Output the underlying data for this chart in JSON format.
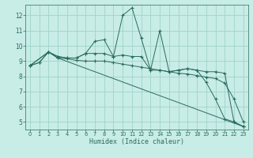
{
  "xlabel": "Humidex (Indice chaleur)",
  "bg_color": "#c8ece6",
  "line_color": "#2a6b5e",
  "grid_color": "#a0d4cc",
  "xlim": [
    -0.5,
    23.5
  ],
  "ylim": [
    4.5,
    12.7
  ],
  "xticks": [
    0,
    1,
    2,
    3,
    4,
    5,
    6,
    7,
    8,
    9,
    10,
    11,
    12,
    13,
    14,
    15,
    16,
    17,
    18,
    19,
    20,
    21,
    22,
    23
  ],
  "yticks": [
    5,
    6,
    7,
    8,
    9,
    10,
    11,
    12
  ],
  "lines": [
    {
      "x": [
        0,
        1,
        2,
        3,
        4,
        5,
        6,
        7,
        8,
        9,
        10,
        11,
        12,
        13,
        14,
        15,
        16,
        17,
        18,
        19,
        20,
        21,
        22,
        23
      ],
      "y": [
        8.7,
        8.9,
        9.6,
        9.3,
        9.2,
        9.2,
        9.5,
        10.3,
        10.4,
        9.3,
        12.0,
        12.5,
        10.5,
        8.4,
        11.0,
        8.3,
        8.4,
        8.5,
        8.4,
        7.6,
        6.5,
        5.2,
        5.0,
        4.7
      ]
    },
    {
      "x": [
        0,
        1,
        2,
        3,
        4,
        5,
        6,
        7,
        8,
        9,
        10,
        11,
        12,
        13,
        14,
        15,
        16,
        17,
        18,
        19,
        20,
        21,
        22,
        23
      ],
      "y": [
        8.7,
        8.9,
        9.6,
        9.3,
        9.2,
        9.2,
        9.5,
        9.5,
        9.5,
        9.3,
        9.4,
        9.3,
        9.3,
        8.4,
        8.4,
        8.3,
        8.4,
        8.5,
        8.4,
        8.3,
        8.3,
        8.2,
        5.0,
        4.7
      ]
    },
    {
      "x": [
        0,
        2,
        3,
        4,
        5,
        6,
        7,
        8,
        9,
        10,
        11,
        12,
        13,
        14,
        15,
        16,
        17,
        18,
        19,
        20,
        21,
        22,
        23
      ],
      "y": [
        8.7,
        9.6,
        9.2,
        9.15,
        9.05,
        9.0,
        9.0,
        9.0,
        8.9,
        8.8,
        8.7,
        8.6,
        8.5,
        8.4,
        8.3,
        8.2,
        8.15,
        8.05,
        7.95,
        7.85,
        7.55,
        6.5,
        5.0
      ]
    },
    {
      "x": [
        0,
        2,
        3,
        23
      ],
      "y": [
        8.7,
        9.6,
        9.2,
        4.7
      ]
    }
  ]
}
